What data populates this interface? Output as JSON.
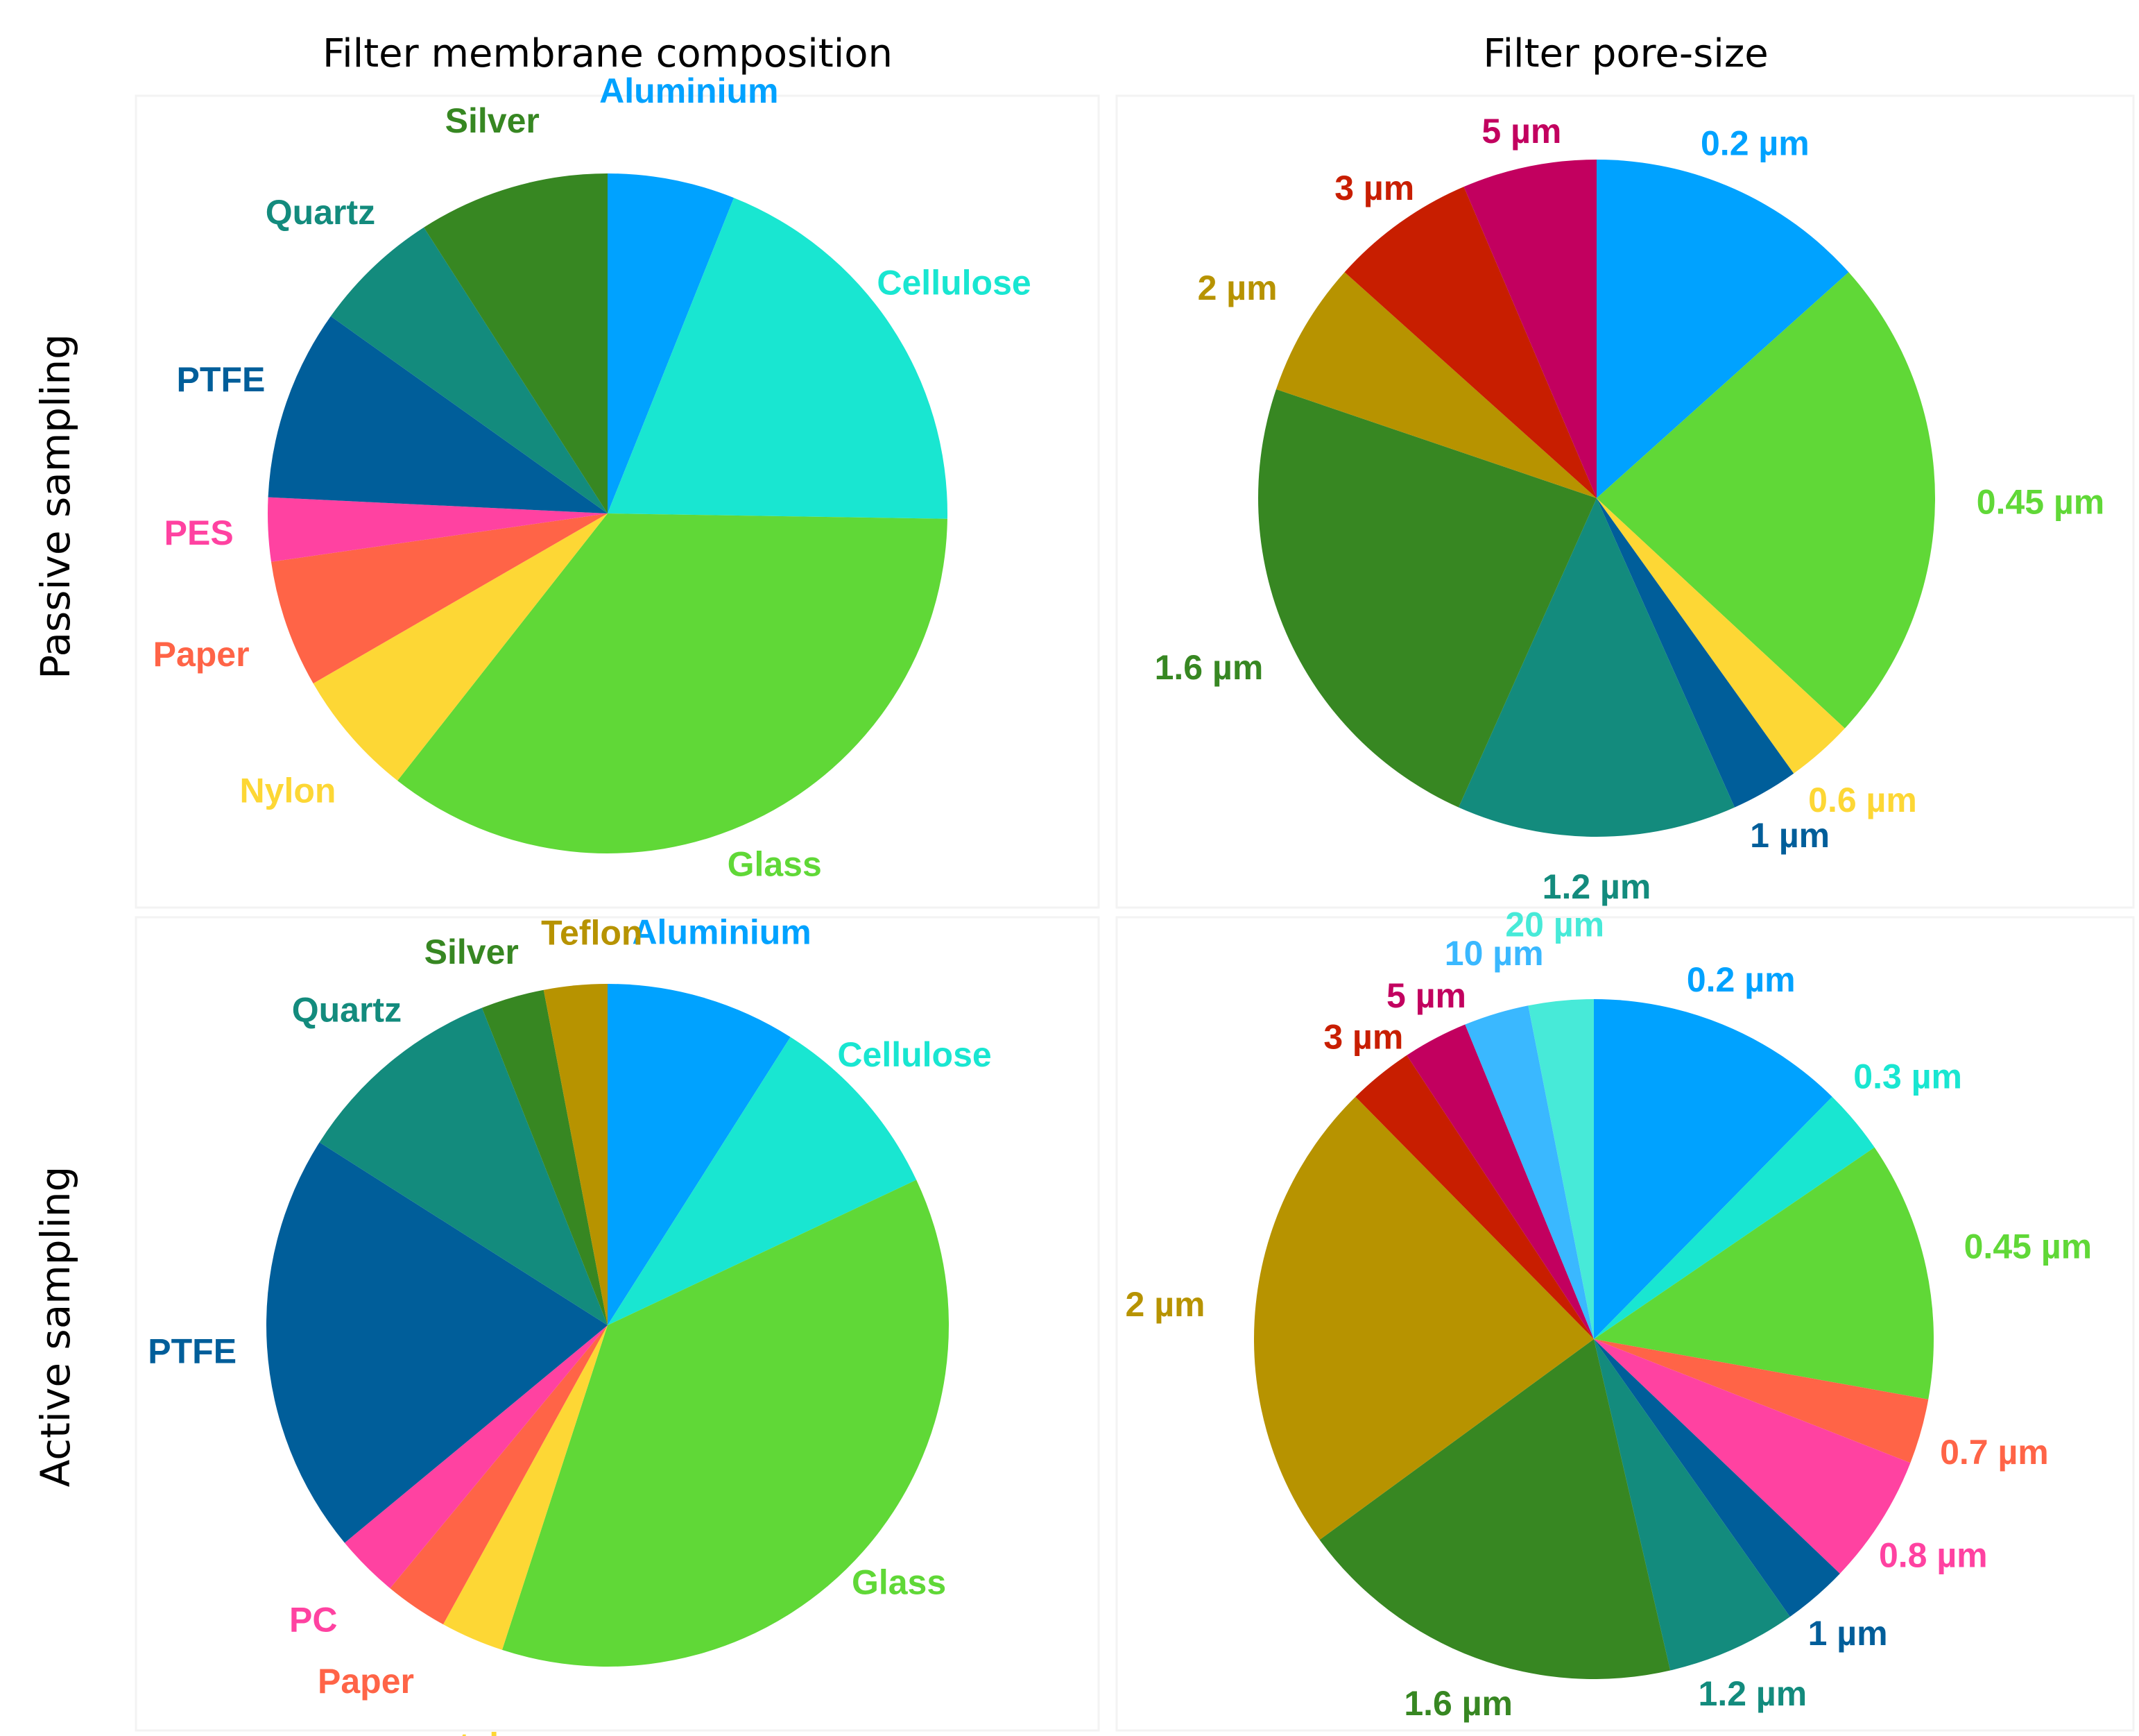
{
  "column_titles": [
    "Filter membrane composition",
    "Filter pore-size"
  ],
  "row_titles": [
    "Passive sampling",
    "Active sampling"
  ],
  "chart_data": [
    {
      "type": "pie",
      "title": "Filter membrane composition",
      "row": "Passive sampling",
      "slices": [
        {
          "label": "Aluminium",
          "value": 6.0,
          "color": "#00a2ff"
        },
        {
          "label": "Cellulose",
          "value": 19.0,
          "color": "#19e6d1"
        },
        {
          "label": "Glass",
          "value": 35.0,
          "color": "#60d837"
        },
        {
          "label": "Nylon",
          "value": 6.0,
          "color": "#fdd735"
        },
        {
          "label": "Paper",
          "value": 6.0,
          "color": "#ff6447"
        },
        {
          "label": "PES",
          "value": 3.0,
          "color": "#ff42a1"
        },
        {
          "label": "PTFE",
          "value": 9.0,
          "color": "#005e9a"
        },
        {
          "label": "Quartz",
          "value": 6.0,
          "color": "#138b7d"
        },
        {
          "label": "Silver",
          "value": 9.0,
          "color": "#378722"
        }
      ]
    },
    {
      "type": "pie",
      "title": "Filter pore-size",
      "row": "Passive sampling",
      "slices": [
        {
          "label": "0.2 µm",
          "value": 12.5,
          "color": "#00a2ff"
        },
        {
          "label": "0.45 µm",
          "value": 22.0,
          "color": "#60d837"
        },
        {
          "label": "0.6 µm",
          "value": 3.0,
          "color": "#fdd735"
        },
        {
          "label": "1 µm",
          "value": 3.0,
          "color": "#005e9a"
        },
        {
          "label": "1.2 µm",
          "value": 12.5,
          "color": "#138b7d"
        },
        {
          "label": "1.6 µm",
          "value": 22.0,
          "color": "#378722"
        },
        {
          "label": "2 µm",
          "value": 6.0,
          "color": "#b79300"
        },
        {
          "label": "3 µm",
          "value": 6.5,
          "color": "#c81e00"
        },
        {
          "label": "5 µm",
          "value": 6.0,
          "color": "#c2005f"
        }
      ]
    },
    {
      "type": "pie",
      "title": "Filter membrane composition",
      "row": "Active sampling",
      "slices": [
        {
          "label": "Aluminium",
          "value": 9.0,
          "color": "#00a2ff"
        },
        {
          "label": "Cellulose",
          "value": 9.0,
          "color": "#19e6d1"
        },
        {
          "label": "Glass",
          "value": 37.0,
          "color": "#60d837"
        },
        {
          "label": "metal",
          "value": 3.0,
          "color": "#fdd735"
        },
        {
          "label": "Paper",
          "value": 3.0,
          "color": "#ff6447"
        },
        {
          "label": "PC",
          "value": 3.0,
          "color": "#ff42a1"
        },
        {
          "label": "PTFE",
          "value": 20.0,
          "color": "#005e9a"
        },
        {
          "label": "Quartz",
          "value": 10.0,
          "color": "#138b7d"
        },
        {
          "label": "Silver",
          "value": 3.0,
          "color": "#378722"
        },
        {
          "label": "Teflon",
          "value": 3.0,
          "color": "#b79300"
        }
      ]
    },
    {
      "type": "pie",
      "title": "Filter pore-size",
      "row": "Active sampling",
      "slices": [
        {
          "label": "0.2 µm",
          "value": 12.0,
          "color": "#00a2ff"
        },
        {
          "label": "0.3 µm",
          "value": 3.0,
          "color": "#19e6d1"
        },
        {
          "label": "0.45 µm",
          "value": 12.0,
          "color": "#60d837"
        },
        {
          "label": "0.7 µm",
          "value": 3.0,
          "color": "#ff6447"
        },
        {
          "label": "0.8 µm",
          "value": 6.0,
          "color": "#ff42a1"
        },
        {
          "label": "1 µm",
          "value": 3.0,
          "color": "#005e9a"
        },
        {
          "label": "1.2 µm",
          "value": 6.0,
          "color": "#138b7d"
        },
        {
          "label": "1.6 µm",
          "value": 18.0,
          "color": "#378722"
        },
        {
          "label": "2 µm",
          "value": 22.0,
          "color": "#b79300"
        },
        {
          "label": "3 µm",
          "value": 3.0,
          "color": "#c81e00"
        },
        {
          "label": "5 µm",
          "value": 3.0,
          "color": "#c2005f"
        },
        {
          "label": "10 µm",
          "value": 3.0,
          "color": "#3ab8ff"
        },
        {
          "label": "20 µm",
          "value": 3.0,
          "color": "#47ead8"
        }
      ]
    }
  ]
}
